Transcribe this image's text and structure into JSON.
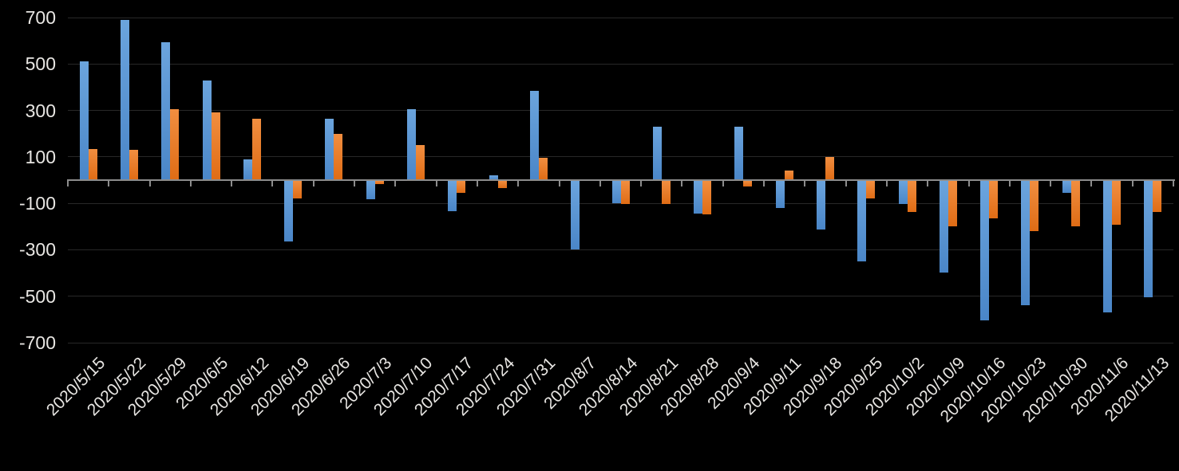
{
  "chart": {
    "background": "#000000",
    "axis_color": "#8C8C8C",
    "gridline_color": "#282828",
    "label_color": "#E8E6E3"
  },
  "chart_data": {
    "type": "bar",
    "title": "",
    "xlabel": "",
    "ylabel": "",
    "grid": true,
    "legend": "none",
    "ylim": [
      -700,
      700
    ],
    "yticks": [
      700,
      500,
      300,
      100,
      -100,
      -300,
      -500,
      -700
    ],
    "categories": [
      "2020/5/15",
      "2020/5/22",
      "2020/5/29",
      "2020/6/5",
      "2020/6/12",
      "2020/6/19",
      "2020/6/26",
      "2020/7/3",
      "2020/7/10",
      "2020/7/17",
      "2020/7/24",
      "2020/7/31",
      "2020/8/7",
      "2020/8/14",
      "2020/8/21",
      "2020/8/28",
      "2020/9/4",
      "2020/9/11",
      "2020/9/18",
      "2020/9/25",
      "2020/10/2",
      "2020/10/9",
      "2020/10/16",
      "2020/10/23",
      "2020/10/30",
      "2020/11/6",
      "2020/11/13"
    ],
    "series": [
      {
        "key": "blue",
        "color": "#5B9BD5",
        "gradient": [
          "#6BA4DD",
          "#4A86C8"
        ],
        "values": [
          510,
          690,
          595,
          430,
          90,
          -260,
          265,
          -80,
          305,
          -130,
          20,
          385,
          -295,
          -95,
          230,
          -140,
          230,
          -115,
          -210,
          -345,
          -100,
          -395,
          -600,
          -535,
          -50,
          -565,
          -500
        ]
      },
      {
        "key": "orange",
        "color": "#ED7D31",
        "gradient": [
          "#F18E40",
          "#DF6C15"
        ],
        "values": [
          135,
          130,
          305,
          290,
          265,
          -75,
          200,
          -15,
          150,
          -50,
          -30,
          95,
          0,
          -100,
          -100,
          -145,
          -25,
          40,
          100,
          -75,
          -135,
          -195,
          -160,
          -215,
          -195,
          -190,
          -135
        ]
      }
    ]
  }
}
